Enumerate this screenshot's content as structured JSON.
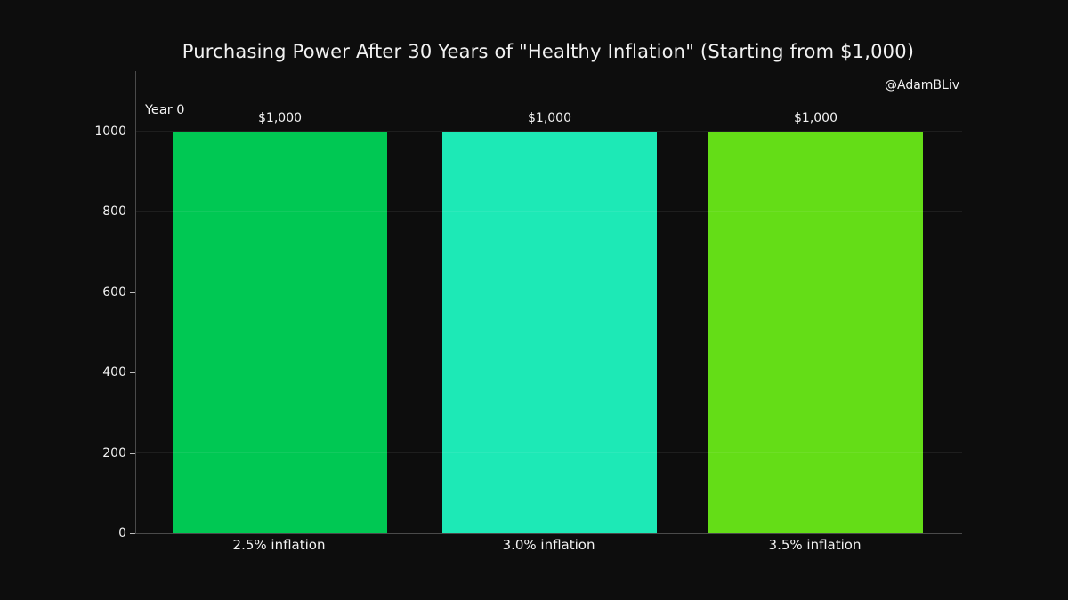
{
  "figure": {
    "background": "#0d0d0d",
    "text_color": "#f2f2f2",
    "spine_color": "#4a4a4a",
    "attribution": "@AdamBLiv"
  },
  "chart_data": {
    "type": "bar",
    "title": "Purchasing Power After 30 Years of \"Healthy Inflation\" (Starting from $1,000)",
    "annotation": "Year 0",
    "categories": [
      "2.5% inflation",
      "3.0% inflation",
      "3.5% inflation"
    ],
    "values": [
      1000,
      1000,
      1000
    ],
    "bar_labels": [
      "$1,000",
      "$1,000",
      "$1,000"
    ],
    "bar_colors": [
      "#00c853",
      "#1de9b6",
      "#64dd17"
    ],
    "xlabel": "",
    "ylabel": "",
    "ylim": [
      0,
      1150
    ],
    "yticks": [
      0,
      200,
      400,
      600,
      800,
      1000
    ],
    "grid": true,
    "grid_over_bars": true,
    "legend": "none"
  }
}
